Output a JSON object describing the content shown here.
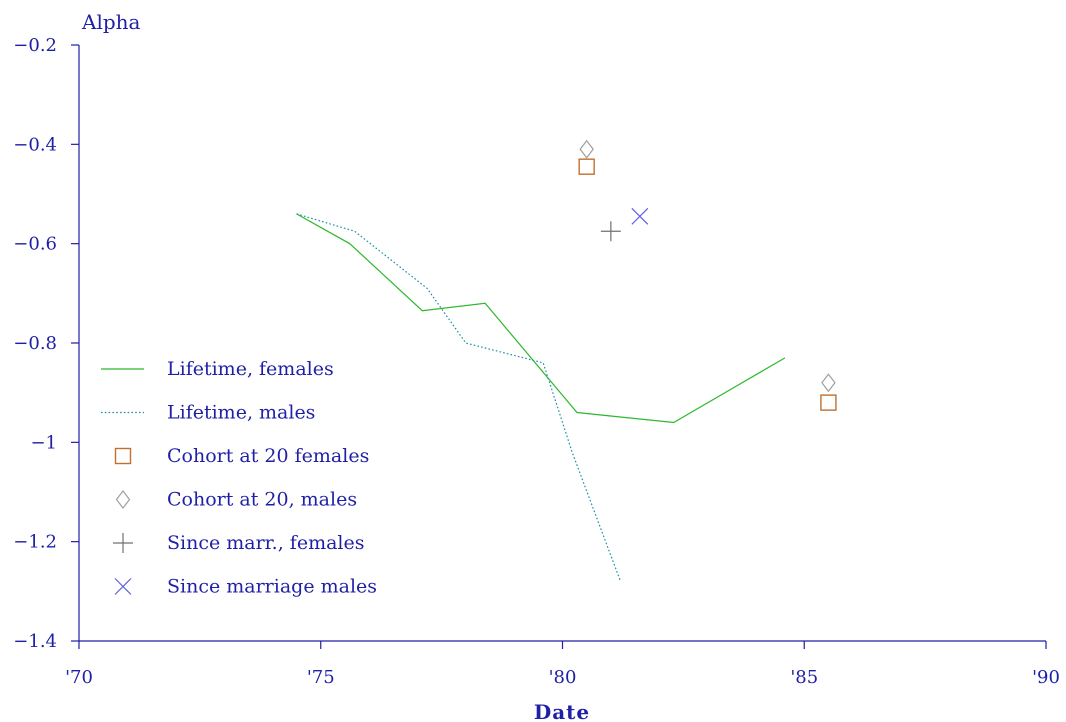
{
  "chart_data": {
    "type": "line",
    "title": "",
    "xlabel": "Date",
    "ylabel": "Alpha",
    "xlim": [
      1970,
      1990
    ],
    "ylim": [
      -1.4,
      -0.2
    ],
    "x_ticks": [
      {
        "value": 1970,
        "label": "'70"
      },
      {
        "value": 1975,
        "label": "'75"
      },
      {
        "value": 1980,
        "label": "'80"
      },
      {
        "value": 1985,
        "label": "'85"
      },
      {
        "value": 1990,
        "label": "'90"
      }
    ],
    "y_ticks": [
      {
        "value": -0.2,
        "label": "−0.2"
      },
      {
        "value": -0.4,
        "label": "−0.4"
      },
      {
        "value": -0.6,
        "label": "−0.6"
      },
      {
        "value": -0.8,
        "label": "−0.8"
      },
      {
        "value": -1.0,
        "label": "−1"
      },
      {
        "value": -1.2,
        "label": "−1.2"
      },
      {
        "value": -1.4,
        "label": "−1.4"
      }
    ],
    "grid": false,
    "legend_position": "left",
    "series": [
      {
        "name": "Lifetime, females",
        "kind": "line",
        "style": "solid",
        "color": "#2db82d",
        "x": [
          1974.5,
          1975.6,
          1977.1,
          1978.4,
          1980.3,
          1982.3,
          1984.6
        ],
        "y": [
          -0.54,
          -0.6,
          -0.735,
          -0.72,
          -0.94,
          -0.96,
          -0.83
        ]
      },
      {
        "name": "Lifetime, males",
        "kind": "line",
        "style": "dotted",
        "color": "#1a8fa8",
        "x": [
          1974.5,
          1975.7,
          1977.2,
          1978.0,
          1979.6,
          1980.2,
          1981.2
        ],
        "y": [
          -0.54,
          -0.575,
          -0.69,
          -0.8,
          -0.84,
          -1.02,
          -1.28
        ]
      },
      {
        "name": "Cohort at 20 females",
        "kind": "marker",
        "marker": "square",
        "color": "#c07030",
        "x": [
          1980.5,
          1985.5
        ],
        "y": [
          -0.445,
          -0.92
        ]
      },
      {
        "name": "Cohort at 20, males",
        "kind": "marker",
        "marker": "diamond",
        "color": "#a0a0a0",
        "x": [
          1980.5,
          1985.5
        ],
        "y": [
          -0.41,
          -0.88
        ]
      },
      {
        "name": "Since marr., females",
        "kind": "marker",
        "marker": "plus",
        "color": "#707070",
        "x": [
          1981.0
        ],
        "y": [
          -0.575
        ]
      },
      {
        "name": "Since marriage males",
        "kind": "marker",
        "marker": "cross",
        "color": "#6060e0",
        "x": [
          1981.6
        ],
        "y": [
          -0.545
        ]
      }
    ]
  }
}
